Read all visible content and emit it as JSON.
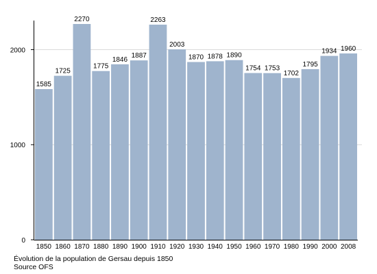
{
  "chart_data": {
    "type": "bar",
    "title": "",
    "xlabel": "",
    "ylabel": "",
    "categories": [
      "1850",
      "1860",
      "1870",
      "1880",
      "1890",
      "1900",
      "1910",
      "1920",
      "1930",
      "1940",
      "1950",
      "1960",
      "1970",
      "1980",
      "1990",
      "2000",
      "2008"
    ],
    "values": [
      1585,
      1725,
      2270,
      1775,
      1846,
      1887,
      2263,
      2003,
      1870,
      1878,
      1890,
      1754,
      1753,
      1702,
      1795,
      1934,
      1960
    ],
    "data_labels": [
      "1585",
      "1725",
      "2270",
      "1775",
      "1846",
      "1887",
      "2263",
      "2003",
      "1870",
      "1878",
      "1890",
      "1754",
      "1753",
      "1702",
      "1795",
      "1934",
      "1960"
    ],
    "ylim": [
      0,
      2400
    ],
    "yticks": [
      0,
      1000,
      2000
    ],
    "ytick_labels": [
      "0",
      "1000",
      "2000"
    ],
    "grid": true,
    "legend": "none",
    "bar_color": "#9fb4cd",
    "grid_color": "#d9d9d9"
  },
  "caption": {
    "title": "Évolution de la population de Gersau depuis 1850",
    "source": "Source OFS"
  }
}
